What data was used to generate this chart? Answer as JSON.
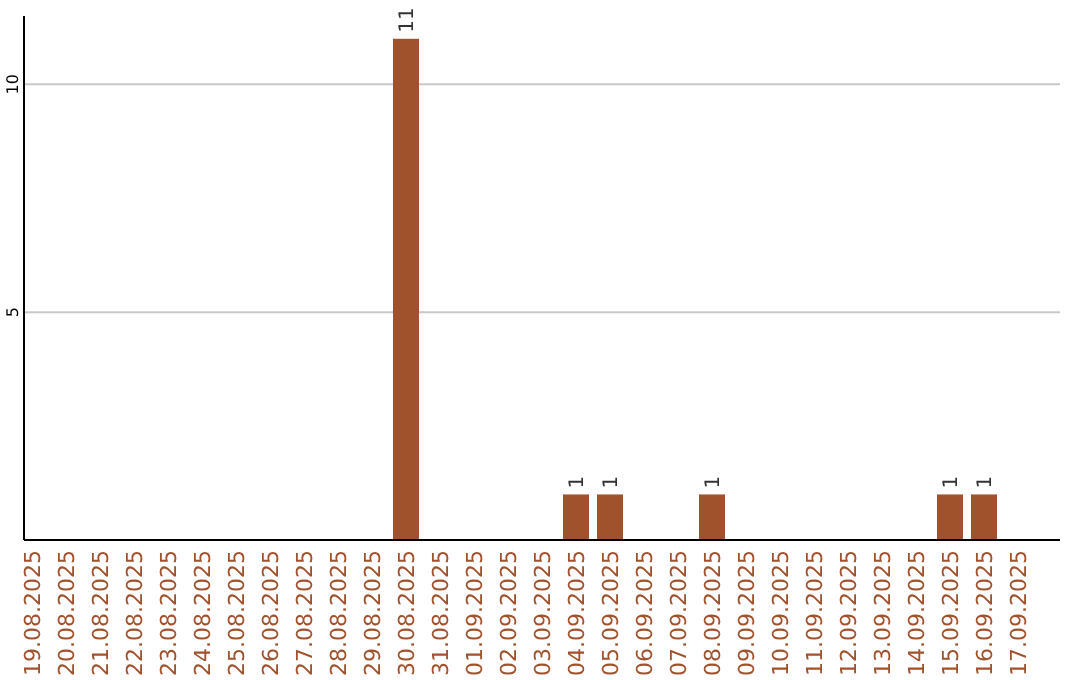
{
  "chart_data": {
    "type": "bar",
    "categories": [
      "19.08.2025",
      "20.08.2025",
      "21.08.2025",
      "22.08.2025",
      "23.08.2025",
      "24.08.2025",
      "25.08.2025",
      "26.08.2025",
      "27.08.2025",
      "28.08.2025",
      "29.08.2025",
      "30.08.2025",
      "31.08.2025",
      "01.09.2025",
      "02.09.2025",
      "03.09.2025",
      "04.09.2025",
      "05.09.2025",
      "06.09.2025",
      "07.09.2025",
      "08.09.2025",
      "09.09.2025",
      "10.09.2025",
      "11.09.2025",
      "12.09.2025",
      "13.09.2025",
      "14.09.2025",
      "15.09.2025",
      "16.09.2025",
      "17.09.2025"
    ],
    "values": [
      0,
      0,
      0,
      0,
      0,
      0,
      0,
      0,
      0,
      0,
      0,
      11,
      0,
      0,
      0,
      0,
      1,
      1,
      0,
      0,
      1,
      0,
      0,
      0,
      0,
      0,
      0,
      1,
      1,
      0
    ],
    "value_labels": [
      null,
      null,
      null,
      null,
      null,
      null,
      null,
      null,
      null,
      null,
      null,
      "11",
      null,
      null,
      null,
      null,
      "1",
      "1",
      null,
      null,
      "1",
      null,
      null,
      null,
      null,
      null,
      null,
      "1",
      "1",
      null
    ],
    "color": "#a0522d",
    "ylim": [
      0,
      11.5
    ],
    "yticks": [
      5,
      10
    ],
    "grid": "y"
  }
}
